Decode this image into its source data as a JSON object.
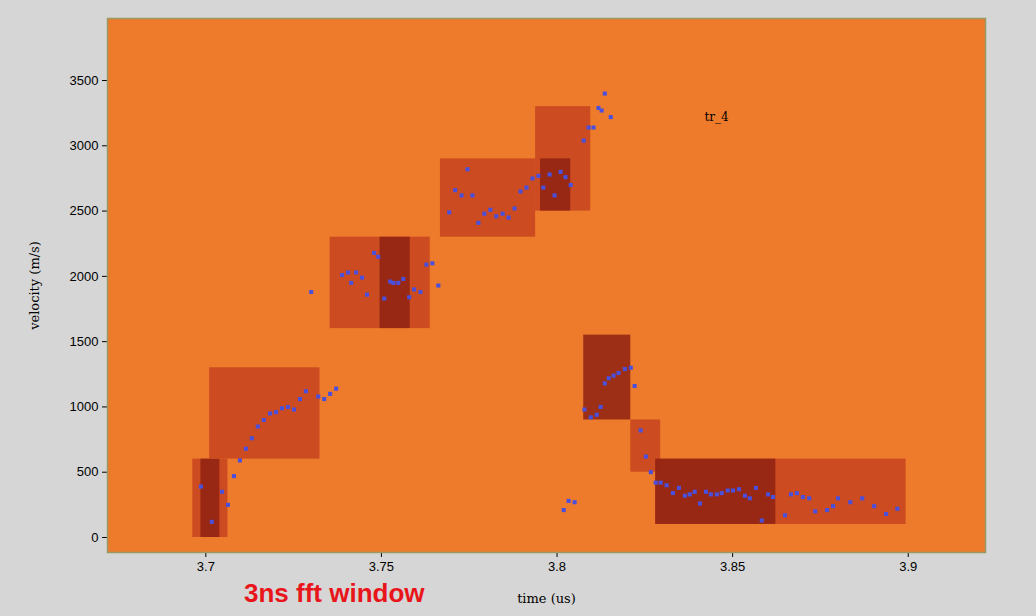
{
  "chart_data": {
    "type": "scatter",
    "caption": "3ns fft window",
    "x_label": "time (us)",
    "y_label": "velocity (m/s)",
    "xlim": [
      3.672,
      3.922
    ],
    "xticks": [
      3.7,
      3.75,
      3.8,
      3.85,
      3.9
    ],
    "ylim": [
      -115,
      3975
    ],
    "yticks": [
      0,
      500,
      1000,
      1500,
      2000,
      2500,
      3000,
      3500
    ],
    "annotations": [
      {
        "text": "tr_4",
        "x": 3.842,
        "y": 3220
      }
    ],
    "cells": [
      {
        "x1": 3.6963,
        "x2": 3.7063,
        "y1": 0,
        "y2": 600,
        "level": 1
      },
      {
        "x1": 3.6986,
        "x2": 3.704,
        "y1": 0,
        "y2": 600,
        "level": 2
      },
      {
        "x1": 3.7011,
        "x2": 3.7325,
        "y1": 600,
        "y2": 1300,
        "level": 1
      },
      {
        "x1": 3.7354,
        "x2": 3.7639,
        "y1": 1600,
        "y2": 2300,
        "level": 1
      },
      {
        "x1": 3.7496,
        "x2": 3.7582,
        "y1": 1600,
        "y2": 2300,
        "level": 2
      },
      {
        "x1": 3.7668,
        "x2": 3.7939,
        "y1": 2300,
        "y2": 2900,
        "level": 1
      },
      {
        "x1": 3.7939,
        "x2": 3.8096,
        "y1": 2500,
        "y2": 3300,
        "level": 1
      },
      {
        "x1": 3.7953,
        "x2": 3.8039,
        "y1": 2500,
        "y2": 2900,
        "level": 2
      },
      {
        "x1": 3.8076,
        "x2": 3.821,
        "y1": 900,
        "y2": 1550,
        "level": 2
      },
      {
        "x1": 3.821,
        "x2": 3.8295,
        "y1": 500,
        "y2": 900,
        "level": 1
      },
      {
        "x1": 3.8281,
        "x2": 3.8994,
        "y1": 100,
        "y2": 600,
        "level": 1
      },
      {
        "x1": 3.8281,
        "x2": 3.8623,
        "y1": 100,
        "y2": 600,
        "level": 2
      }
    ],
    "series": [
      {
        "color": "#4a4fdc",
        "marker": "square",
        "x": [
          3.6986,
          3.7017,
          3.7046,
          3.7063,
          3.708,
          3.7097,
          3.7114,
          3.7131,
          3.7148,
          3.7165,
          3.7183,
          3.72,
          3.7217,
          3.7234,
          3.7251,
          3.7268,
          3.7285,
          3.73,
          3.732,
          3.7337,
          3.7354,
          3.7371,
          3.7388,
          3.7405,
          3.7414,
          3.7428,
          3.7445,
          3.7459,
          3.7479,
          3.7491,
          3.7508,
          3.7525,
          3.7534,
          3.7548,
          3.7562,
          3.7579,
          3.7593,
          3.7611,
          3.7628,
          3.7645,
          3.7662,
          3.7693,
          3.771,
          3.7728,
          3.7745,
          3.7759,
          3.7776,
          3.7793,
          3.781,
          3.7827,
          3.7845,
          3.7862,
          3.7879,
          3.7896,
          3.7913,
          3.793,
          3.7947,
          3.7961,
          3.7979,
          3.7993,
          3.801,
          3.8024,
          3.8039,
          3.8076,
          3.809,
          3.8104,
          3.8118,
          3.8127,
          3.8136,
          3.8153,
          3.8019,
          3.8033,
          3.805,
          3.8078,
          3.8096,
          3.8113,
          3.8124,
          3.8136,
          3.8147,
          3.8161,
          3.8175,
          3.8193,
          3.821,
          3.8221,
          3.8238,
          3.8253,
          3.8267,
          3.8281,
          3.8295,
          3.8312,
          3.833,
          3.8347,
          3.8364,
          3.8378,
          3.8392,
          3.8407,
          3.8424,
          3.8438,
          3.8455,
          3.8469,
          3.8486,
          3.8501,
          3.8518,
          3.8535,
          3.8549,
          3.8566,
          3.8583,
          3.8601,
          3.8615,
          3.8649,
          3.8666,
          3.8683,
          3.87,
          3.8718,
          3.8735,
          3.8769,
          3.8786,
          3.88,
          3.8835,
          3.8869,
          3.8903,
          3.8937,
          3.8969
        ],
        "values": [
          390,
          120,
          350,
          250,
          470,
          590,
          680,
          760,
          850,
          900,
          950,
          960,
          990,
          1000,
          980,
          1060,
          1120,
          1880,
          1080,
          1060,
          1100,
          1140,
          2010,
          2030,
          1950,
          2030,
          1990,
          1860,
          2180,
          2150,
          1830,
          1960,
          1950,
          1950,
          1980,
          1840,
          1900,
          1880,
          2090,
          2100,
          1930,
          2490,
          2660,
          2620,
          2820,
          2620,
          2410,
          2480,
          2510,
          2460,
          2480,
          2450,
          2520,
          2650,
          2680,
          2750,
          2770,
          2680,
          2780,
          2620,
          2800,
          2760,
          2700,
          3040,
          3140,
          3140,
          3290,
          3270,
          3400,
          3220,
          210,
          280,
          270,
          980,
          920,
          940,
          1000,
          1180,
          1220,
          1240,
          1260,
          1290,
          1300,
          1160,
          820,
          620,
          500,
          420,
          420,
          400,
          340,
          380,
          320,
          330,
          350,
          260,
          350,
          330,
          330,
          340,
          360,
          360,
          370,
          320,
          300,
          380,
          130,
          330,
          310,
          170,
          330,
          340,
          310,
          300,
          200,
          210,
          240,
          300,
          270,
          300,
          240,
          180,
          220
        ]
      }
    ]
  }
}
